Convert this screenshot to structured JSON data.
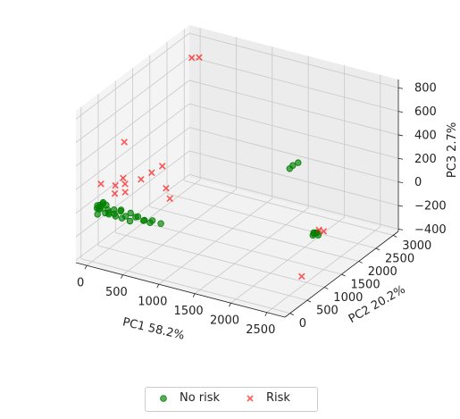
{
  "chart_data": {
    "type": "scatter",
    "projection": "3d",
    "xlabel": "PC1 58.2%",
    "ylabel": "PC2 20.2%",
    "zlabel": "PC3 2.7%",
    "xlim": [
      -150,
      2750
    ],
    "ylim": [
      -150,
      3150
    ],
    "zlim": [
      -420,
      870
    ],
    "x_ticks": [
      "0",
      "500",
      "1000",
      "1500",
      "2000",
      "2500"
    ],
    "y_ticks": [
      "0",
      "500",
      "1000",
      "1500",
      "2000",
      "2500",
      "3000"
    ],
    "z_ticks": [
      "800",
      "600",
      "400",
      "200",
      "0",
      "−200",
      "−400"
    ],
    "grid": true,
    "legend_position": "bottom-center",
    "series": [
      {
        "name": "No risk",
        "marker": "circle",
        "color": "#008000",
        "points": [
          [
            0,
            150,
            0
          ],
          [
            20,
            200,
            20
          ],
          [
            10,
            180,
            -10
          ],
          [
            30,
            100,
            40
          ],
          [
            60,
            120,
            10
          ],
          [
            40,
            80,
            -30
          ],
          [
            80,
            160,
            60
          ],
          [
            50,
            220,
            30
          ],
          [
            120,
            140,
            -20
          ],
          [
            100,
            60,
            50
          ],
          [
            160,
            120,
            20
          ],
          [
            140,
            200,
            -40
          ],
          [
            200,
            80,
            10
          ],
          [
            180,
            40,
            80
          ],
          [
            240,
            150,
            -10
          ],
          [
            260,
            100,
            40
          ],
          [
            300,
            60,
            0
          ],
          [
            320,
            180,
            30
          ],
          [
            360,
            120,
            -20
          ],
          [
            380,
            40,
            60
          ],
          [
            420,
            100,
            10
          ],
          [
            460,
            160,
            30
          ],
          [
            500,
            60,
            -10
          ],
          [
            550,
            120,
            20
          ],
          [
            600,
            80,
            40
          ],
          [
            650,
            140,
            0
          ],
          [
            700,
            60,
            30
          ],
          [
            760,
            100,
            10
          ],
          [
            820,
            40,
            50
          ],
          [
            900,
            120,
            20
          ],
          [
            2600,
            1000,
            20
          ],
          [
            2620,
            1050,
            10
          ],
          [
            2640,
            980,
            30
          ],
          [
            2580,
            1020,
            -10
          ],
          [
            2650,
            1030,
            0
          ],
          [
            2610,
            990,
            15
          ],
          [
            1500,
            2700,
            40
          ],
          [
            1550,
            2750,
            60
          ],
          [
            1480,
            2650,
            20
          ]
        ]
      },
      {
        "name": "Risk",
        "marker": "x",
        "color": "#ff0000",
        "points": [
          [
            50,
            2800,
            700
          ],
          [
            200,
            2700,
            750
          ],
          [
            20,
            900,
            400
          ],
          [
            30,
            200,
            200
          ],
          [
            40,
            600,
            100
          ],
          [
            100,
            700,
            150
          ],
          [
            150,
            650,
            120
          ],
          [
            80,
            500,
            60
          ],
          [
            200,
            550,
            80
          ],
          [
            300,
            800,
            150
          ],
          [
            400,
            900,
            200
          ],
          [
            500,
            1000,
            250
          ],
          [
            600,
            900,
            100
          ],
          [
            700,
            800,
            50
          ],
          [
            2650,
            1050,
            40
          ],
          [
            2700,
            1080,
            30
          ],
          [
            2720,
            400,
            -200
          ]
        ]
      }
    ]
  }
}
